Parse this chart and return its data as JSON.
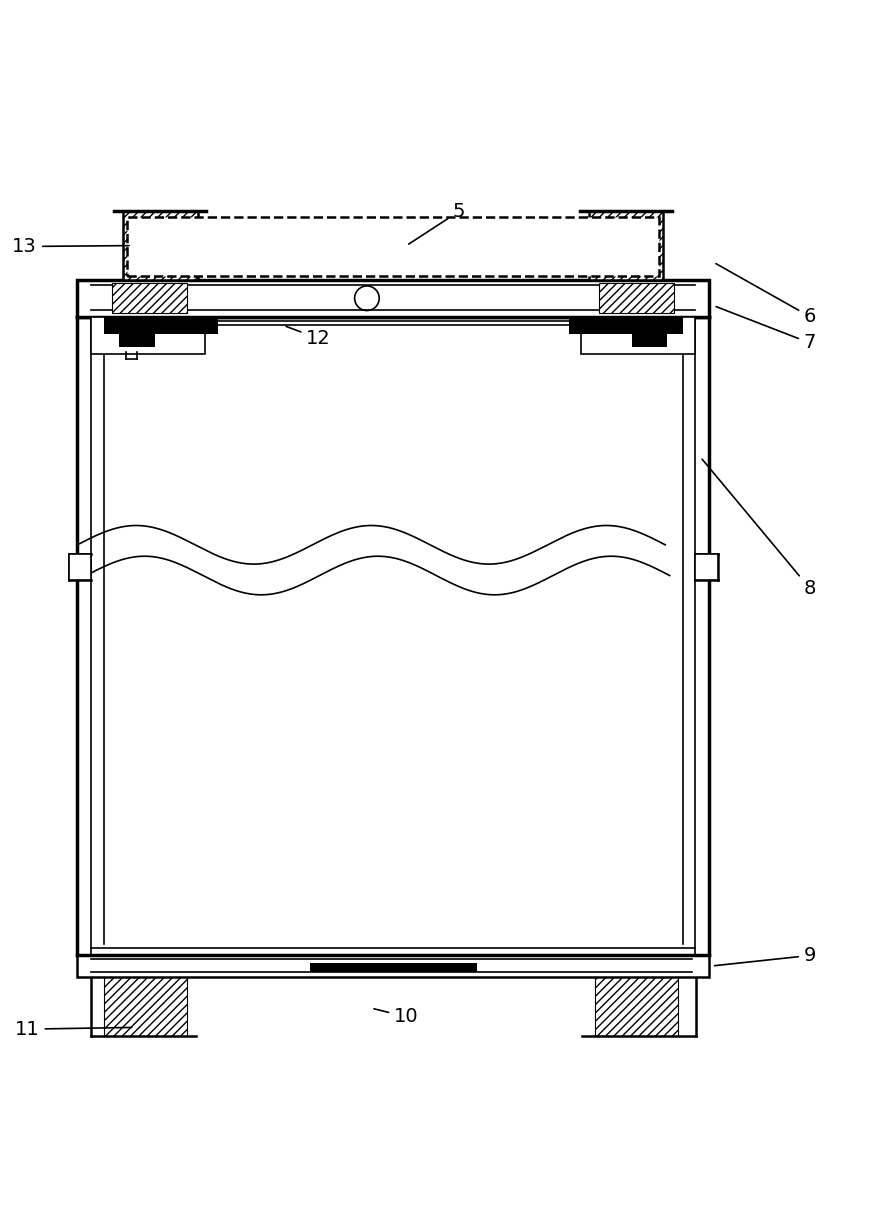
{
  "figsize": [
    8.83,
    12.3
  ],
  "dpi": 100,
  "bg_color": "#ffffff",
  "line_color": "#000000",
  "lw_thick": 2.5,
  "lw_med": 1.8,
  "lw_thin": 1.2,
  "lw_hatch": 0.8,
  "font_size": 14,
  "label_lw": 1.2
}
